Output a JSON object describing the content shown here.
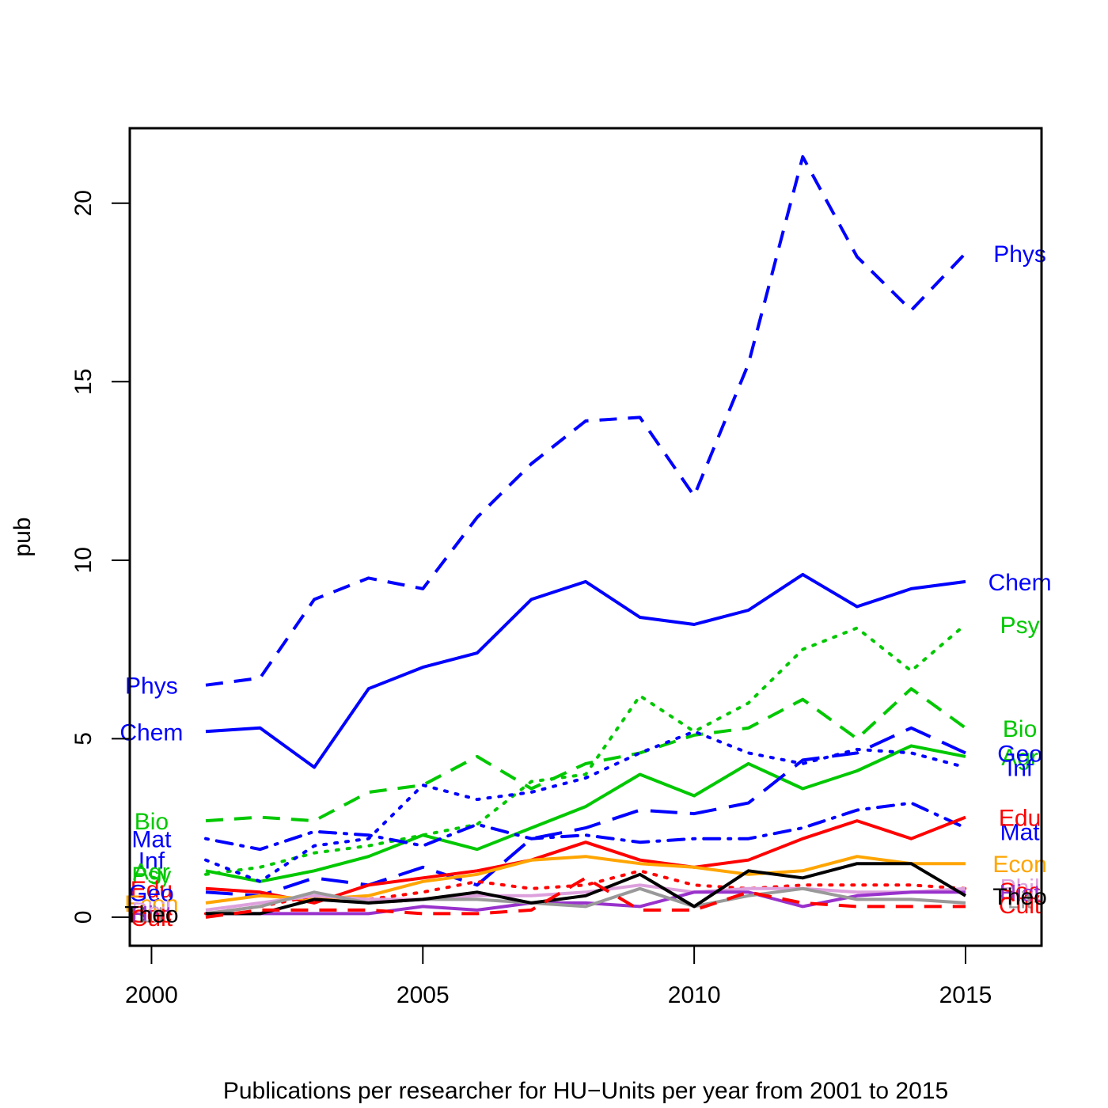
{
  "chart_data": {
    "type": "line",
    "title": "",
    "xlabel": "Publications per researcher for HU−Units per year from 2001 to 2015",
    "ylabel": "pub",
    "xlim": [
      1999.6,
      2016.4
    ],
    "ylim": [
      -0.8,
      22.1
    ],
    "x_ticks": [
      2000,
      2005,
      2010,
      2015
    ],
    "y_ticks": [
      0,
      5,
      10,
      15,
      20
    ],
    "x_tick_labels": [
      "2000",
      "2005",
      "2010",
      "2015"
    ],
    "y_tick_labels": [
      "0",
      "5",
      "10",
      "15",
      "20"
    ],
    "grid": false,
    "legend": "none",
    "x": [
      2001,
      2002,
      2003,
      2004,
      2005,
      2006,
      2007,
      2008,
      2009,
      2010,
      2011,
      2012,
      2013,
      2014,
      2015
    ],
    "series": [
      {
        "name": "Phys",
        "color": "#0000ff",
        "dash": "dashed",
        "values": [
          6.5,
          6.7,
          8.9,
          9.5,
          9.2,
          11.2,
          12.7,
          13.9,
          14.0,
          11.8,
          15.5,
          21.3,
          18.5,
          17.0,
          18.6
        ]
      },
      {
        "name": "Chem",
        "color": "#0000ff",
        "dash": "solid",
        "values": [
          5.2,
          5.3,
          4.2,
          6.4,
          7.0,
          7.4,
          8.9,
          9.4,
          8.4,
          8.2,
          8.6,
          9.6,
          8.7,
          9.2,
          9.4
        ]
      },
      {
        "name": "Psy",
        "color": "#00c800",
        "dash": "dotted",
        "values": [
          1.2,
          1.4,
          1.8,
          2.0,
          2.3,
          2.6,
          3.8,
          4.0,
          6.2,
          5.2,
          6.0,
          7.5,
          8.1,
          6.9,
          8.2
        ]
      },
      {
        "name": "Bio",
        "color": "#00c800",
        "dash": "dashed",
        "values": [
          2.7,
          2.8,
          2.7,
          3.5,
          3.7,
          4.5,
          3.6,
          4.3,
          4.6,
          5.1,
          5.3,
          6.1,
          5.0,
          6.4,
          5.3
        ]
      },
      {
        "name": "Agr",
        "color": "#00c800",
        "dash": "solid",
        "values": [
          1.3,
          1.0,
          1.3,
          1.7,
          2.3,
          1.9,
          2.5,
          3.1,
          4.0,
          3.4,
          4.3,
          3.6,
          4.1,
          4.8,
          4.5
        ]
      },
      {
        "name": "Geo",
        "color": "#0000ff",
        "dash": "longdash",
        "values": [
          0.7,
          0.6,
          1.1,
          0.9,
          1.4,
          0.9,
          2.2,
          2.5,
          3.0,
          2.9,
          3.2,
          4.4,
          4.6,
          5.3,
          4.6
        ]
      },
      {
        "name": "Inf",
        "color": "#0000ff",
        "dash": "dotted",
        "values": [
          1.6,
          1.0,
          2.0,
          2.2,
          3.7,
          3.3,
          3.5,
          3.9,
          4.6,
          5.2,
          4.6,
          4.3,
          4.7,
          4.6,
          4.2
        ]
      },
      {
        "name": "Mat",
        "color": "#0000ff",
        "dash": "dotdash",
        "values": [
          2.2,
          1.9,
          2.4,
          2.3,
          2.0,
          2.6,
          2.2,
          2.3,
          2.1,
          2.2,
          2.2,
          2.5,
          3.0,
          3.2,
          2.5
        ]
      },
      {
        "name": "Edu",
        "color": "#ff0000",
        "dash": "solid",
        "values": [
          0.8,
          0.7,
          0.4,
          0.9,
          1.1,
          1.3,
          1.6,
          2.1,
          1.6,
          1.4,
          1.6,
          2.2,
          2.7,
          2.2,
          2.8
        ]
      },
      {
        "name": "Econ",
        "color": "#ffa500",
        "dash": "solid",
        "values": [
          0.4,
          0.6,
          0.5,
          0.6,
          1.0,
          1.2,
          1.6,
          1.7,
          1.5,
          1.4,
          1.2,
          1.3,
          1.7,
          1.5,
          1.5
        ]
      },
      {
        "name": "Soc",
        "color": "#ff0000",
        "dash": "dotted",
        "values": [
          0.1,
          0.3,
          0.6,
          0.5,
          0.7,
          1.0,
          0.8,
          0.9,
          1.3,
          0.9,
          0.8,
          0.9,
          0.9,
          0.9,
          0.8
        ]
      },
      {
        "name": "Phil",
        "color": "#dda0dd",
        "dash": "solid",
        "values": [
          0.2,
          0.4,
          0.6,
          0.5,
          0.5,
          0.6,
          0.6,
          0.7,
          0.9,
          0.7,
          0.8,
          0.8,
          0.7,
          0.7,
          0.8
        ]
      },
      {
        "name": "Hist",
        "color": "#9932cc",
        "dash": "solid",
        "values": [
          0.1,
          0.1,
          0.1,
          0.1,
          0.3,
          0.2,
          0.4,
          0.4,
          0.3,
          0.7,
          0.7,
          0.3,
          0.6,
          0.7,
          0.7
        ]
      },
      {
        "name": "Lit",
        "color": "#999999",
        "dash": "solid",
        "values": [
          0.1,
          0.3,
          0.7,
          0.4,
          0.5,
          0.5,
          0.4,
          0.3,
          0.8,
          0.3,
          0.6,
          0.8,
          0.5,
          0.5,
          0.4
        ]
      },
      {
        "name": "Theo",
        "color": "#000000",
        "dash": "solid",
        "values": [
          0.1,
          0.1,
          0.5,
          0.4,
          0.5,
          0.7,
          0.4,
          0.6,
          1.2,
          0.3,
          1.3,
          1.1,
          1.5,
          1.5,
          0.6
        ]
      },
      {
        "name": "Cult",
        "color": "#ff0000",
        "dash": "dashed",
        "values": [
          0.0,
          0.2,
          0.2,
          0.2,
          0.1,
          0.1,
          0.2,
          1.1,
          0.2,
          0.2,
          0.7,
          0.4,
          0.3,
          0.3,
          0.3
        ]
      }
    ],
    "series_labels": [
      {
        "text": "Phys",
        "color": "#0000ff",
        "x": 2000.0,
        "y": 6.5
      },
      {
        "text": "Phys",
        "color": "#0000ff",
        "x": 2016.0,
        "y": 18.6
      },
      {
        "text": "Chem",
        "color": "#0000ff",
        "x": 2000.0,
        "y": 5.2
      },
      {
        "text": "Chem",
        "color": "#0000ff",
        "x": 2016.0,
        "y": 9.4
      },
      {
        "text": "Psy",
        "color": "#00c800",
        "x": 2016.0,
        "y": 8.2
      },
      {
        "text": "Bio",
        "color": "#00c800",
        "x": 2000.0,
        "y": 2.7
      },
      {
        "text": "Bio",
        "color": "#00c800",
        "x": 2016.0,
        "y": 5.3
      },
      {
        "text": "Agr",
        "color": "#00c800",
        "x": 2016.0,
        "y": 4.5
      },
      {
        "text": "Geo",
        "color": "#0000ff",
        "x": 2016.0,
        "y": 4.6
      },
      {
        "text": "Inf",
        "color": "#0000ff",
        "x": 2000.0,
        "y": 1.6
      },
      {
        "text": "Inf",
        "color": "#0000ff",
        "x": 2016.0,
        "y": 4.2
      },
      {
        "text": "Mat",
        "color": "#0000ff",
        "x": 2000.0,
        "y": 2.2
      },
      {
        "text": "Mat",
        "color": "#0000ff",
        "x": 2016.0,
        "y": 2.4
      },
      {
        "text": "Agr",
        "color": "#00c800",
        "x": 2000.0,
        "y": 1.3
      },
      {
        "text": "Psy",
        "color": "#00c800",
        "x": 2000.0,
        "y": 1.2
      },
      {
        "text": "Edu",
        "color": "#ff0000",
        "x": 2000.0,
        "y": 0.8
      },
      {
        "text": "Geo",
        "color": "#0000ff",
        "x": 2000.0,
        "y": 0.7
      },
      {
        "text": "Edu",
        "color": "#ff0000",
        "x": 2016.0,
        "y": 2.8
      },
      {
        "text": "Econ",
        "color": "#ffa500",
        "x": 2000.0,
        "y": 0.4
      },
      {
        "text": "Econ",
        "color": "#ffa500",
        "x": 2016.0,
        "y": 1.5
      },
      {
        "text": "Phil",
        "color": "#dda0dd",
        "x": 2000.0,
        "y": 0.2
      },
      {
        "text": "Phil",
        "color": "#dda0dd",
        "x": 2016.0,
        "y": 0.85
      },
      {
        "text": "Soc",
        "color": "#ff0000",
        "x": 2000.0,
        "y": 0.1
      },
      {
        "text": "Soc",
        "color": "#ff0000",
        "x": 2016.0,
        "y": 0.75
      },
      {
        "text": "Hist",
        "color": "#9932cc",
        "x": 2000.0,
        "y": 0.1
      },
      {
        "text": "Hist",
        "color": "#9932cc",
        "x": 2016.0,
        "y": 0.7
      },
      {
        "text": "Lit",
        "color": "#999999",
        "x": 2000.0,
        "y": 0.1
      },
      {
        "text": "Lit",
        "color": "#999999",
        "x": 2016.0,
        "y": 0.5
      },
      {
        "text": "Cult",
        "color": "#ff0000",
        "x": 2000.0,
        "y": 0.0
      },
      {
        "text": "Cult",
        "color": "#ff0000",
        "x": 2016.0,
        "y": 0.35
      },
      {
        "text": "Theo",
        "color": "#000000",
        "x": 2000.0,
        "y": 0.1
      },
      {
        "text": "Theo",
        "color": "#000000",
        "x": 2016.0,
        "y": 0.6
      }
    ]
  }
}
